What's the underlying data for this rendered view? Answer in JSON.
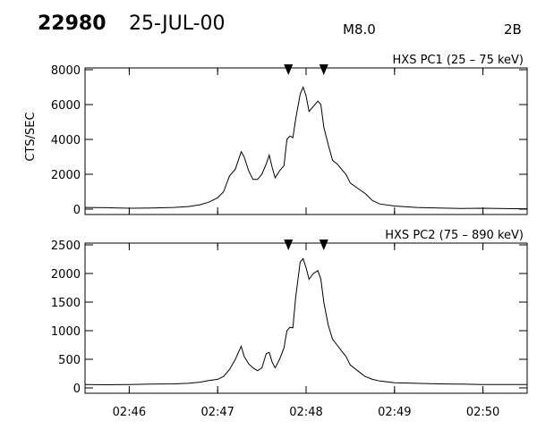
{
  "header": {
    "event_id": "22980",
    "date": "25-JUL-00",
    "goes_class": "M8.0",
    "flag": "2B"
  },
  "chart_data": [
    {
      "type": "line",
      "title": "HXS PC1 (25 – 75 keV)",
      "ylabel": "CTS/SEC",
      "xlabel": "",
      "ylim": [
        0,
        8000
      ],
      "yticks": [
        0,
        2000,
        4000,
        6000,
        8000
      ],
      "xlim": [
        "02:45:30",
        "02:50:30"
      ],
      "xticks": [
        "02:46",
        "02:47",
        "02:48",
        "02:49",
        "02:50"
      ],
      "markers": [
        "02:47:48",
        "02:48:12"
      ],
      "grid": false,
      "series": [
        {
          "x": [
            "02:45:30",
            "02:45:45",
            "02:46:00",
            "02:46:15",
            "02:46:30",
            "02:46:40",
            "02:46:48",
            "02:46:54",
            "02:47:00",
            "02:47:04",
            "02:47:08",
            "02:47:12",
            "02:47:16",
            "02:47:18",
            "02:47:21",
            "02:47:24",
            "02:47:27",
            "02:47:30",
            "02:47:33",
            "02:47:35",
            "02:47:37",
            "02:47:39",
            "02:47:42",
            "02:47:45",
            "02:47:47",
            "02:47:49",
            "02:47:51",
            "02:47:53",
            "02:47:56",
            "02:47:58",
            "02:48:00",
            "02:48:02",
            "02:48:05",
            "02:48:08",
            "02:48:10",
            "02:48:12",
            "02:48:15",
            "02:48:18",
            "02:48:21",
            "02:48:24",
            "02:48:27",
            "02:48:30",
            "02:48:35",
            "02:48:40",
            "02:48:45",
            "02:48:50",
            "02:49:00",
            "02:49:15",
            "02:49:30",
            "02:49:45",
            "02:50:00",
            "02:50:15",
            "02:50:30"
          ],
          "y": [
            100,
            80,
            50,
            60,
            100,
            150,
            250,
            400,
            650,
            1000,
            1900,
            2300,
            3300,
            3000,
            2200,
            1700,
            1700,
            2000,
            2600,
            3100,
            2400,
            1800,
            2200,
            2500,
            4000,
            4200,
            4100,
            5200,
            6600,
            7000,
            6500,
            5600,
            5900,
            6200,
            6000,
            4700,
            3700,
            2800,
            2600,
            2300,
            2000,
            1500,
            1200,
            900,
            500,
            300,
            180,
            100,
            60,
            40,
            50,
            30,
            20
          ]
        }
      ]
    },
    {
      "type": "line",
      "title": "HXS PC2 (75 – 890 keV)",
      "ylabel": "",
      "xlabel": "",
      "ylim": [
        0,
        2500
      ],
      "yticks": [
        0,
        500,
        1000,
        1500,
        2000,
        2500
      ],
      "xlim": [
        "02:45:30",
        "02:50:30"
      ],
      "xticks": [
        "02:46",
        "02:47",
        "02:48",
        "02:49",
        "02:50"
      ],
      "markers": [
        "02:47:48",
        "02:48:12"
      ],
      "grid": false,
      "series": [
        {
          "x": [
            "02:45:30",
            "02:45:45",
            "02:46:00",
            "02:46:15",
            "02:46:30",
            "02:46:40",
            "02:46:48",
            "02:46:54",
            "02:47:00",
            "02:47:04",
            "02:47:08",
            "02:47:12",
            "02:47:16",
            "02:47:18",
            "02:47:21",
            "02:47:24",
            "02:47:27",
            "02:47:30",
            "02:47:33",
            "02:47:35",
            "02:47:37",
            "02:47:39",
            "02:47:42",
            "02:47:45",
            "02:47:47",
            "02:47:49",
            "02:47:51",
            "02:47:53",
            "02:47:56",
            "02:47:58",
            "02:48:00",
            "02:48:02",
            "02:48:05",
            "02:48:08",
            "02:48:10",
            "02:48:12",
            "02:48:15",
            "02:48:18",
            "02:48:21",
            "02:48:24",
            "02:48:27",
            "02:48:30",
            "02:48:35",
            "02:48:40",
            "02:48:45",
            "02:48:50",
            "02:49:00",
            "02:49:15",
            "02:49:30",
            "02:49:45",
            "02:50:00",
            "02:50:15",
            "02:50:30"
          ],
          "y": [
            60,
            55,
            60,
            65,
            70,
            80,
            100,
            130,
            150,
            200,
            320,
            500,
            730,
            550,
            420,
            350,
            300,
            350,
            600,
            620,
            450,
            350,
            500,
            700,
            1000,
            1060,
            1050,
            1600,
            2200,
            2260,
            2100,
            1900,
            2000,
            2050,
            1900,
            1500,
            1100,
            850,
            750,
            650,
            550,
            400,
            300,
            200,
            150,
            120,
            90,
            80,
            70,
            65,
            60,
            60,
            60
          ]
        }
      ]
    }
  ]
}
